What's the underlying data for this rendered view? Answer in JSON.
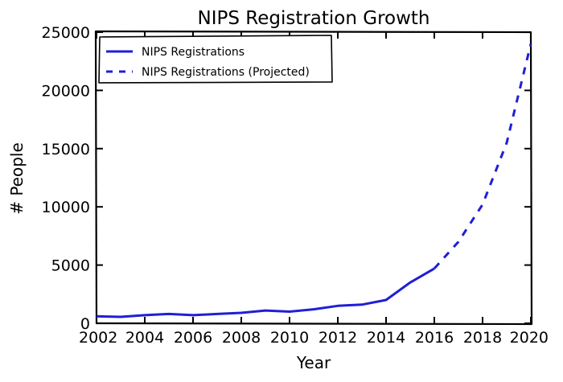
{
  "chart_data": {
    "type": "line",
    "title": "NIPS Registration Growth",
    "xlabel": "Year",
    "ylabel": "# People",
    "xlim": [
      2002,
      2020
    ],
    "ylim": [
      0,
      25000
    ],
    "xticks": [
      2002,
      2004,
      2006,
      2008,
      2010,
      2012,
      2014,
      2016,
      2018,
      2020
    ],
    "yticks": [
      0,
      5000,
      10000,
      15000,
      20000,
      25000
    ],
    "grid": false,
    "legend_position": "top-left",
    "series": [
      {
        "name": "NIPS Registrations",
        "style": "solid",
        "color": "#1f1fd6",
        "x": [
          2002,
          2003,
          2004,
          2005,
          2006,
          2007,
          2008,
          2009,
          2010,
          2011,
          2012,
          2013,
          2014,
          2015,
          2016
        ],
        "y": [
          600,
          550,
          700,
          800,
          700,
          800,
          900,
          1100,
          1000,
          1200,
          1500,
          1600,
          2000,
          3500,
          4700
        ]
      },
      {
        "name": "NIPS Registrations (Projected)",
        "style": "dashed",
        "color": "#1f1fd6",
        "x": [
          2016,
          2017,
          2018,
          2019,
          2020
        ],
        "y": [
          4700,
          7000,
          10200,
          15500,
          24000
        ]
      }
    ]
  }
}
